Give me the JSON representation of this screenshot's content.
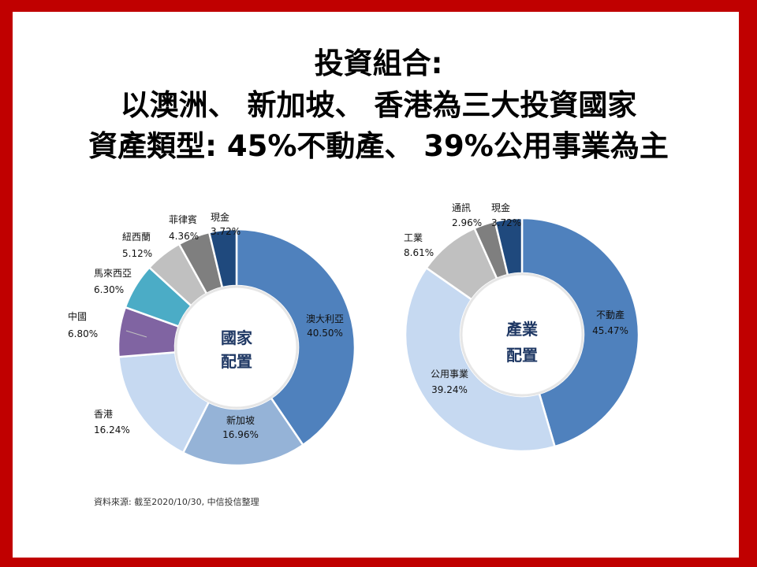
{
  "title_lines": [
    "投資組合:",
    "以澳洲、 新加坡、 香港為三大投資國家",
    "資產類型: 45%不動產、 39%公用事業為主"
  ],
  "source_note": "資料來源: 截至2020/10/30, 中信投信整理",
  "chart_data": [
    {
      "type": "pie",
      "variant": "donut",
      "center_label": [
        "國家",
        "配置"
      ],
      "slices": [
        {
          "label": "澳大利亞",
          "value": 40.5,
          "value_text": "40.50%",
          "color": "#4f81bd"
        },
        {
          "label": "新加坡",
          "value": 16.96,
          "value_text": "16.96%",
          "color": "#95b3d7"
        },
        {
          "label": "香港",
          "value": 16.24,
          "value_text": "16.24%",
          "color": "#c6d9f1"
        },
        {
          "label": "中國",
          "value": 6.8,
          "value_text": "6.80%",
          "color": "#8064a2"
        },
        {
          "label": "馬來西亞",
          "value": 6.3,
          "value_text": "6.30%",
          "color": "#4bacc6"
        },
        {
          "label": "紐西蘭",
          "value": 5.12,
          "value_text": "5.12%",
          "color": "#c0c0c0"
        },
        {
          "label": "菲律賓",
          "value": 4.36,
          "value_text": "4.36%",
          "color": "#7f7f7f"
        },
        {
          "label": "現金",
          "value": 3.72,
          "value_text": "3.72%",
          "color": "#1f497d"
        }
      ]
    },
    {
      "type": "pie",
      "variant": "donut",
      "center_label": [
        "產業",
        "配置"
      ],
      "slices": [
        {
          "label": "不動產",
          "value": 45.47,
          "value_text": "45.47%",
          "color": "#4f81bd"
        },
        {
          "label": "公用事業",
          "value": 39.24,
          "value_text": "39.24%",
          "color": "#c6d9f1"
        },
        {
          "label": "工業",
          "value": 8.61,
          "value_text": "8.61%",
          "color": "#c0c0c0"
        },
        {
          "label": "通訊",
          "value": 2.96,
          "value_text": "2.96%",
          "color": "#7f7f7f"
        },
        {
          "label": "現金",
          "value": 3.72,
          "value_text": "3.72%",
          "color": "#1f497d"
        }
      ]
    }
  ]
}
